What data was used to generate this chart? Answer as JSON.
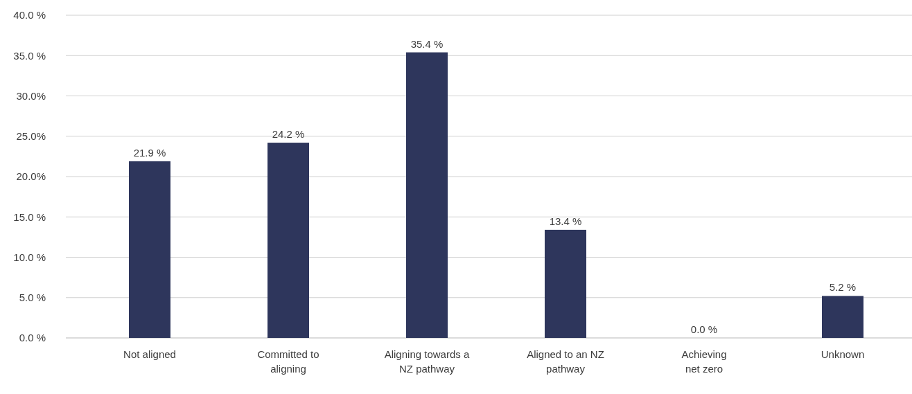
{
  "chart_data": {
    "type": "bar",
    "categories": [
      "Not aligned",
      "Committed to\naligning",
      "Aligning towards a\nNZ pathway",
      "Aligned to an NZ\npathway",
      "Achieving\nnet zero",
      "Unknown"
    ],
    "values": [
      21.9,
      24.2,
      35.4,
      13.4,
      0.0,
      5.2
    ],
    "value_labels": [
      "21.9 %",
      "24.2 %",
      "35.4 %",
      "13.4 %",
      "0.0 %",
      "5.2 %"
    ],
    "color": "#2e365c",
    "ylim": [
      0,
      40
    ],
    "yticks": [
      {
        "value": 0,
        "label": "0.0 %"
      },
      {
        "value": 5,
        "label": "5.0 %"
      },
      {
        "value": 10,
        "label": "10.0 %"
      },
      {
        "value": 15,
        "label": "15.0 %"
      },
      {
        "value": 20,
        "label": "20.0%"
      },
      {
        "value": 25,
        "label": "25.0%"
      },
      {
        "value": 30,
        "label": "30.0%"
      },
      {
        "value": 35,
        "label": "35.0 %"
      },
      {
        "value": 40,
        "label": "40.0 %"
      }
    ],
    "grid": "y"
  }
}
